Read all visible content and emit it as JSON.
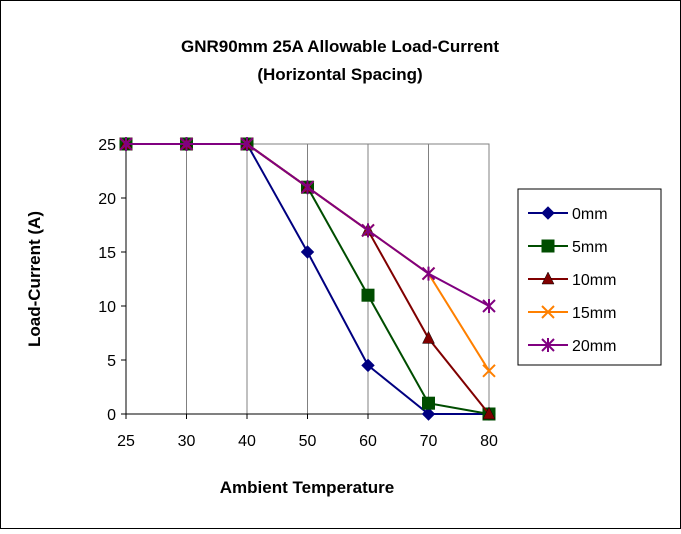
{
  "chart_data": {
    "type": "line",
    "title_lines": [
      "GNR90mm 25A Allowable Load-Current",
      "(Horizontal Spacing)"
    ],
    "xlabel": "Ambient Temperature",
    "ylabel": "Load-Current (A)",
    "categories": [
      "25",
      "30",
      "40",
      "50",
      "60",
      "70",
      "80"
    ],
    "ylim": [
      0,
      25
    ],
    "yticks": [
      "0",
      "5",
      "10",
      "15",
      "20",
      "25"
    ],
    "grid": "vertical",
    "legend_position": "right",
    "series": [
      {
        "name": "0mm",
        "color": "#000080",
        "marker": "diamond",
        "values": [
          25,
          25,
          25,
          15,
          4.5,
          0,
          0
        ]
      },
      {
        "name": "5mm",
        "color": "#004D00",
        "marker": "square",
        "values": [
          25,
          25,
          25,
          21,
          11,
          1,
          0
        ]
      },
      {
        "name": "10mm",
        "color": "#800000",
        "marker": "triangle",
        "values": [
          25,
          25,
          25,
          21,
          17,
          7,
          0
        ]
      },
      {
        "name": "15mm",
        "color": "#FF8000",
        "marker": "x",
        "values": [
          25,
          25,
          25,
          21,
          17,
          13,
          4
        ]
      },
      {
        "name": "20mm",
        "color": "#800080",
        "marker": "star",
        "values": [
          25,
          25,
          25,
          21,
          17,
          13,
          10
        ]
      }
    ]
  }
}
